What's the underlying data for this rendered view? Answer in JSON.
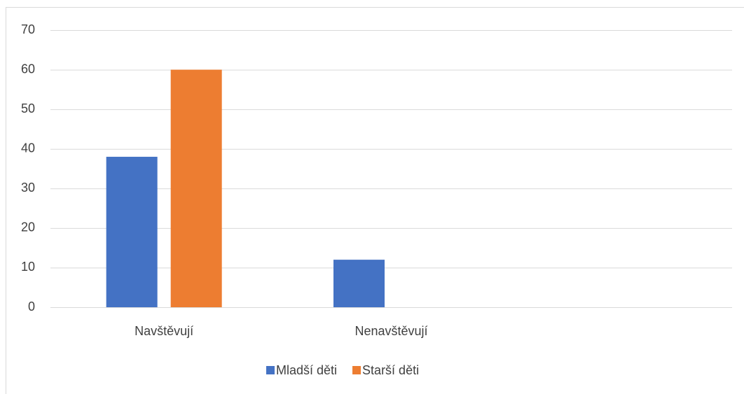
{
  "chart_data": {
    "type": "bar",
    "categories": [
      "Navštěvují",
      "Nenavštěvují",
      null
    ],
    "series": [
      {
        "name": "Mladší děti",
        "color": "#4472c4",
        "values": [
          38,
          12,
          null
        ]
      },
      {
        "name": "Starší děti",
        "color": "#ed7d31",
        "values": [
          60,
          0,
          null
        ]
      }
    ],
    "ylim": [
      0,
      70
    ],
    "yticks": [
      0,
      10,
      20,
      30,
      40,
      50,
      60,
      70
    ],
    "grid": true,
    "legend": "bottom"
  }
}
